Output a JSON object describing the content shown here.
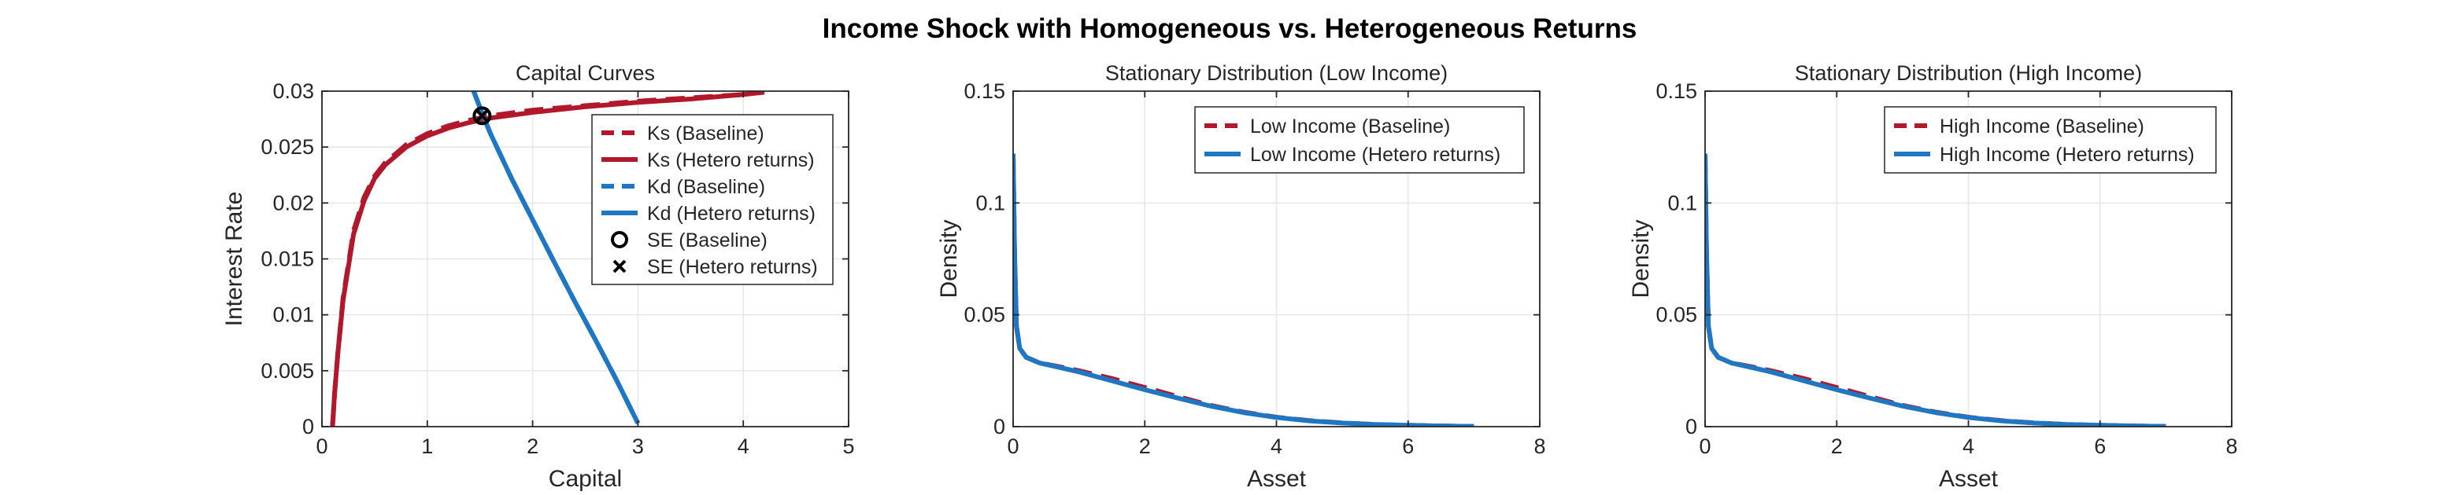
{
  "figure": {
    "title": "Income Shock with Homogeneous vs. Heterogeneous Returns"
  },
  "colors": {
    "baseline": "#b2182b",
    "hetero": "#1f77c4",
    "axis": "#262626",
    "grid": "#e6e6e6"
  },
  "chart_data": [
    {
      "type": "line",
      "title": "Capital Curves",
      "xlabel": "Capital",
      "ylabel": "Interest Rate",
      "xlim": [
        0,
        5
      ],
      "ylim": [
        0,
        0.03
      ],
      "xticks": [
        0,
        1,
        2,
        3,
        4,
        5
      ],
      "xtick_labels": [
        "0",
        "1",
        "2",
        "3",
        "4",
        "5"
      ],
      "yticks": [
        0,
        0.005,
        0.01,
        0.015,
        0.02,
        0.025,
        0.03
      ],
      "ytick_labels": [
        "0",
        "0.005",
        "0.01",
        "0.015",
        "0.02",
        "0.025",
        "0.03"
      ],
      "grid": true,
      "legend_position": "top-right",
      "series": [
        {
          "name": "Ks (Baseline)",
          "style": "dashed",
          "color": "baseline",
          "x": [
            0.1,
            0.12,
            0.15,
            0.2,
            0.3,
            0.4,
            0.5,
            0.6,
            0.8,
            1.0,
            1.2,
            1.4,
            1.6,
            2.0,
            2.5,
            3.0,
            3.5,
            4.0
          ],
          "y": [
            0.0,
            0.003,
            0.0065,
            0.0115,
            0.0175,
            0.0205,
            0.0224,
            0.0236,
            0.0252,
            0.0262,
            0.0269,
            0.0274,
            0.0278,
            0.0283,
            0.0287,
            0.0291,
            0.0294,
            0.0297
          ]
        },
        {
          "name": "Ks (Hetero returns)",
          "style": "solid",
          "color": "baseline",
          "x": [
            0.1,
            0.12,
            0.15,
            0.2,
            0.3,
            0.4,
            0.5,
            0.6,
            0.8,
            1.0,
            1.2,
            1.4,
            1.6,
            2.0,
            2.5,
            3.0,
            3.5,
            4.0,
            4.2
          ],
          "y": [
            0.0,
            0.003,
            0.0065,
            0.0113,
            0.0172,
            0.0202,
            0.0222,
            0.0234,
            0.025,
            0.026,
            0.0267,
            0.0272,
            0.0276,
            0.0281,
            0.0286,
            0.029,
            0.0293,
            0.0297,
            0.0299
          ]
        },
        {
          "name": "Kd (Baseline)",
          "style": "dashed",
          "color": "hetero",
          "x": [
            1.44,
            1.53,
            1.6,
            1.8,
            2.0,
            2.2,
            2.4,
            2.6,
            2.8,
            3.0
          ],
          "y": [
            0.03,
            0.0278,
            0.0262,
            0.0222,
            0.0185,
            0.0148,
            0.0112,
            0.0077,
            0.0041,
            0.0003
          ]
        },
        {
          "name": "Kd (Hetero returns)",
          "style": "solid",
          "color": "hetero",
          "x": [
            1.44,
            1.53,
            1.6,
            1.8,
            2.0,
            2.2,
            2.4,
            2.6,
            2.8,
            3.0
          ],
          "y": [
            0.03,
            0.0278,
            0.0262,
            0.0222,
            0.0185,
            0.0148,
            0.0112,
            0.0077,
            0.0041,
            0.0003
          ]
        },
        {
          "name": "SE (Baseline)",
          "marker": "circle",
          "color": "#000000",
          "x": [
            1.52
          ],
          "y": [
            0.0278
          ]
        },
        {
          "name": "SE (Hetero returns)",
          "marker": "x",
          "color": "#000000",
          "x": [
            1.52
          ],
          "y": [
            0.0278
          ]
        }
      ]
    },
    {
      "type": "line",
      "title": "Stationary Distribution (Low Income)",
      "xlabel": "Asset",
      "ylabel": "Density",
      "xlim": [
        0,
        8
      ],
      "ylim": [
        0,
        0.15
      ],
      "xticks": [
        0,
        2,
        4,
        6,
        8
      ],
      "xtick_labels": [
        "0",
        "2",
        "4",
        "6",
        "8"
      ],
      "yticks": [
        0,
        0.05,
        0.1,
        0.15
      ],
      "ytick_labels": [
        "0",
        "0.05",
        "0.1",
        "0.15"
      ],
      "grid": true,
      "legend_position": "top-right",
      "series": [
        {
          "name": "Low Income (Baseline)",
          "style": "dashed",
          "color": "baseline",
          "x": [
            0.0,
            0.02,
            0.05,
            0.1,
            0.2,
            0.4,
            0.7,
            1.0,
            1.5,
            2.0,
            2.5,
            3.0,
            3.5,
            4.0,
            4.5,
            5.0,
            5.5,
            6.0,
            6.5,
            7.0
          ],
          "y": [
            0.122,
            0.08,
            0.045,
            0.035,
            0.031,
            0.0285,
            0.0268,
            0.025,
            0.0215,
            0.0175,
            0.0135,
            0.0095,
            0.0065,
            0.0042,
            0.0027,
            0.0017,
            0.001,
            0.0006,
            0.0003,
            0.0001
          ]
        },
        {
          "name": "Low Income (Hetero returns)",
          "style": "solid",
          "color": "hetero",
          "x": [
            0.0,
            0.02,
            0.05,
            0.1,
            0.2,
            0.4,
            0.7,
            1.0,
            1.5,
            2.0,
            2.5,
            3.0,
            3.5,
            4.0,
            4.5,
            5.0,
            5.5,
            6.0,
            6.5,
            7.0
          ],
          "y": [
            0.122,
            0.08,
            0.045,
            0.035,
            0.031,
            0.0285,
            0.0265,
            0.0245,
            0.0205,
            0.0165,
            0.0128,
            0.0092,
            0.0063,
            0.0041,
            0.0026,
            0.0016,
            0.001,
            0.0006,
            0.0003,
            0.0001
          ]
        }
      ]
    },
    {
      "type": "line",
      "title": "Stationary Distribution (High Income)",
      "xlabel": "Asset",
      "ylabel": "Density",
      "xlim": [
        0,
        8
      ],
      "ylim": [
        0,
        0.15
      ],
      "xticks": [
        0,
        2,
        4,
        6,
        8
      ],
      "xtick_labels": [
        "0",
        "2",
        "4",
        "6",
        "8"
      ],
      "yticks": [
        0,
        0.05,
        0.1,
        0.15
      ],
      "ytick_labels": [
        "0",
        "0.05",
        "0.1",
        "0.15"
      ],
      "grid": true,
      "legend_position": "top-right",
      "series": [
        {
          "name": "High Income (Baseline)",
          "style": "dashed",
          "color": "baseline",
          "x": [
            0.0,
            0.02,
            0.05,
            0.1,
            0.2,
            0.4,
            0.7,
            1.0,
            1.5,
            2.0,
            2.5,
            3.0,
            3.5,
            4.0,
            4.5,
            5.0,
            5.5,
            6.0,
            6.5,
            7.0
          ],
          "y": [
            0.122,
            0.08,
            0.045,
            0.035,
            0.031,
            0.0285,
            0.0268,
            0.025,
            0.0215,
            0.0175,
            0.0135,
            0.0095,
            0.0065,
            0.0042,
            0.0027,
            0.0017,
            0.001,
            0.0006,
            0.0003,
            0.0001
          ]
        },
        {
          "name": "High Income (Hetero returns)",
          "style": "solid",
          "color": "hetero",
          "x": [
            0.0,
            0.02,
            0.05,
            0.1,
            0.2,
            0.4,
            0.7,
            1.0,
            1.5,
            2.0,
            2.5,
            3.0,
            3.5,
            4.0,
            4.5,
            5.0,
            5.5,
            6.0,
            6.5,
            7.0
          ],
          "y": [
            0.122,
            0.08,
            0.045,
            0.035,
            0.031,
            0.0285,
            0.0265,
            0.0245,
            0.0205,
            0.0165,
            0.0128,
            0.0092,
            0.0063,
            0.0041,
            0.0026,
            0.0016,
            0.001,
            0.0006,
            0.0003,
            0.0001
          ]
        }
      ]
    }
  ]
}
